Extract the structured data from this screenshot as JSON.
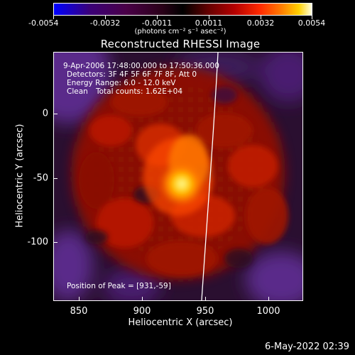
{
  "colorbar": {
    "ticks": [
      "-0.0054",
      "-0.0032",
      "-0.0011",
      "0.0011",
      "0.0032",
      "0.0054"
    ],
    "unit_label": "(photons cm⁻² s⁻¹ asec⁻²)"
  },
  "image_title": "Reconstructed RHESSI Image",
  "info": {
    "time_range": "9-Apr-2006 17:48:00.000 to 17:50:36.000",
    "detectors": "Detectors: 3F 4F 5F 6F 7F 8F, Att 0",
    "energy_range": "Energy Range: 6.0 - 12.0 keV",
    "algorithm": "Clean",
    "total_counts": "Total counts: 1.62E+04",
    "peak": "Position of Peak = [931,-59]"
  },
  "axes": {
    "xlabel": "Heliocentric X (arcsec)",
    "ylabel": "Heliocentric Y (arcsec)",
    "xticks": [
      "850",
      "900",
      "950",
      "1000"
    ],
    "yticks": [
      "0",
      "-50",
      "-100"
    ]
  },
  "timestamp": "6-May-2022 02:39"
}
